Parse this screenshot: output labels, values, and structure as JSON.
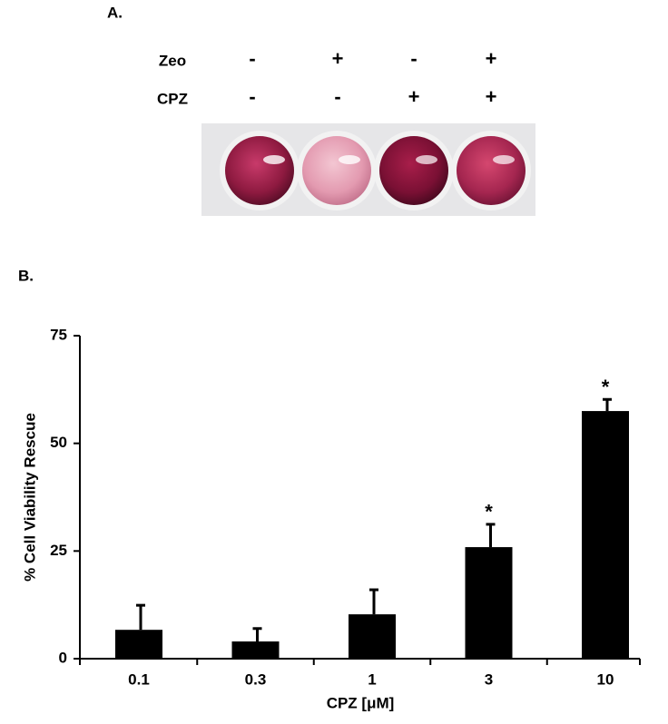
{
  "panel_a": {
    "label": "A.",
    "rows": [
      {
        "name": "Zeo",
        "cells": [
          "-",
          "+",
          "-",
          "+"
        ]
      },
      {
        "name": "CPZ",
        "cells": [
          "-",
          "-",
          "+",
          "+"
        ]
      }
    ]
  },
  "panel_b": {
    "label": "B."
  },
  "chart_data": {
    "type": "bar",
    "xlabel": "CPZ [μM]",
    "ylabel": "% Cell Viability Rescue",
    "categories": [
      "0.1",
      "0.3",
      "1",
      "3",
      "10"
    ],
    "values": [
      6.7,
      4.0,
      10.3,
      25.9,
      57.5
    ],
    "errors": [
      5.7,
      3.0,
      5.7,
      5.3,
      2.7
    ],
    "significance": [
      null,
      null,
      null,
      "*",
      "*"
    ],
    "color": "#000000",
    "ylim": [
      0,
      75
    ],
    "yticks": [
      0,
      25,
      50,
      75
    ]
  }
}
